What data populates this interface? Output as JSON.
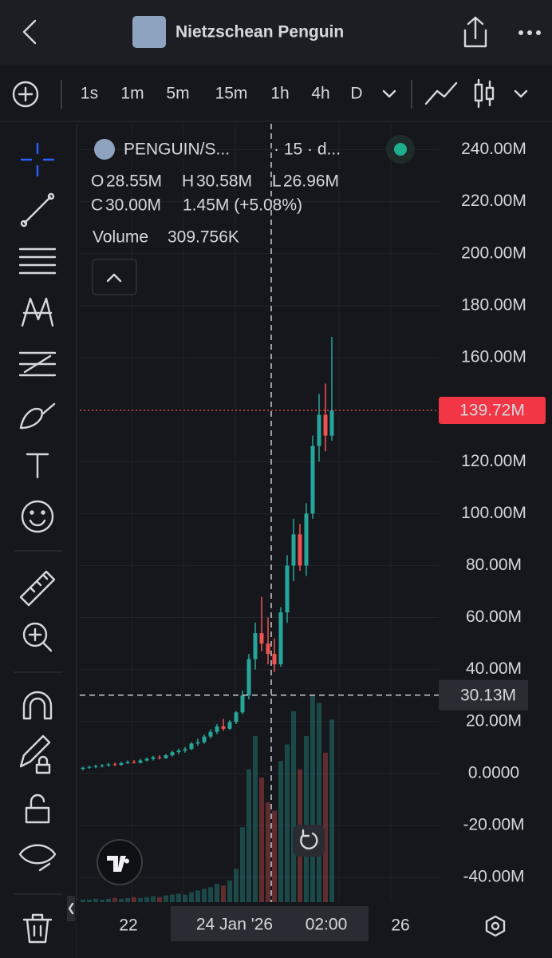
{
  "header": {
    "title": "Nietzschean Penguin"
  },
  "toolbar": {
    "timeframes": [
      "1s",
      "1m",
      "5m",
      "15m",
      "1h",
      "4h",
      "D"
    ],
    "active": "15m"
  },
  "legend": {
    "symbol": "PENGUIN/S...",
    "interval": "· 15 · d...",
    "o_key": "O",
    "o": "28.55M",
    "h_key": "H",
    "h": "30.58M",
    "l_key": "L",
    "l": "26.96M",
    "c_key": "C",
    "c": "30.00M",
    "change": "1.45M (+5.08%)",
    "volume_key": "Volume",
    "volume": "309.756K"
  },
  "chart_data": {
    "type": "candlestick",
    "up_color": "#26a69a",
    "down_color": "#ef5350",
    "ylim": [
      -49.5,
      250
    ],
    "yticks": [
      {
        "value": 240,
        "label": "240.00M"
      },
      {
        "value": 220,
        "label": "220.00M"
      },
      {
        "value": 200,
        "label": "200.00M"
      },
      {
        "value": 180,
        "label": "180.00M"
      },
      {
        "value": 160,
        "label": "160.00M"
      },
      {
        "value": 120,
        "label": "120.00M"
      },
      {
        "value": 100,
        "label": "100.00M"
      },
      {
        "value": 80,
        "label": "80.00M"
      },
      {
        "value": 60,
        "label": "60.00M"
      },
      {
        "value": 40,
        "label": "40.00M"
      },
      {
        "value": 20,
        "label": "20.00M"
      },
      {
        "value": 0,
        "label": "0.0000"
      },
      {
        "value": -20,
        "label": "-20.00M"
      },
      {
        "value": -40,
        "label": "-40.00M"
      }
    ],
    "grid": true,
    "last_price": {
      "value": 139.72,
      "label": "139.72M"
    },
    "crosshair": {
      "value": 30.13,
      "label": "30.13M",
      "date": "24 Jan '26",
      "time": "02:00"
    },
    "x_labels": [
      "22",
      "26"
    ],
    "candles": [
      {
        "open": 1.8,
        "high": 2.6,
        "low": 1.2,
        "close": 2.2
      },
      {
        "open": 2.2,
        "high": 3.0,
        "low": 1.8,
        "close": 2.5
      },
      {
        "open": 2.5,
        "high": 3.4,
        "low": 2.0,
        "close": 2.8
      },
      {
        "open": 2.8,
        "high": 3.6,
        "low": 2.3,
        "close": 3.1
      },
      {
        "open": 3.1,
        "high": 4.0,
        "low": 2.6,
        "close": 3.5
      },
      {
        "open": 3.5,
        "high": 4.2,
        "low": 2.9,
        "close": 3.3
      },
      {
        "open": 3.3,
        "high": 4.5,
        "low": 3.0,
        "close": 4.0
      },
      {
        "open": 4.0,
        "high": 5.0,
        "low": 3.6,
        "close": 4.4
      },
      {
        "open": 4.4,
        "high": 5.2,
        "low": 3.8,
        "close": 4.1
      },
      {
        "open": 4.1,
        "high": 5.6,
        "low": 3.9,
        "close": 5.0
      },
      {
        "open": 5.0,
        "high": 6.2,
        "low": 4.6,
        "close": 5.6
      },
      {
        "open": 5.6,
        "high": 6.8,
        "low": 5.0,
        "close": 6.2
      },
      {
        "open": 6.2,
        "high": 7.0,
        "low": 5.4,
        "close": 5.9
      },
      {
        "open": 5.9,
        "high": 7.5,
        "low": 5.6,
        "close": 7.0
      },
      {
        "open": 7.0,
        "high": 8.8,
        "low": 6.5,
        "close": 8.2
      },
      {
        "open": 8.2,
        "high": 9.6,
        "low": 7.4,
        "close": 8.8
      },
      {
        "open": 8.8,
        "high": 10.2,
        "low": 8.0,
        "close": 9.4
      },
      {
        "open": 9.4,
        "high": 12.0,
        "low": 9.0,
        "close": 11.5
      },
      {
        "open": 11.5,
        "high": 13.4,
        "low": 10.6,
        "close": 12.0
      },
      {
        "open": 12.0,
        "high": 15.0,
        "low": 11.4,
        "close": 14.2
      },
      {
        "open": 14.2,
        "high": 17.0,
        "low": 13.5,
        "close": 16.0
      },
      {
        "open": 16.0,
        "high": 19.0,
        "low": 15.2,
        "close": 18.1
      },
      {
        "open": 18.1,
        "high": 21.0,
        "low": 16.4,
        "close": 17.2
      },
      {
        "open": 17.2,
        "high": 20.5,
        "low": 16.8,
        "close": 19.8
      },
      {
        "open": 19.8,
        "high": 24.0,
        "low": 19.0,
        "close": 23.5
      },
      {
        "open": 23.5,
        "high": 32.0,
        "low": 22.8,
        "close": 30.0
      },
      {
        "open": 30.0,
        "high": 46.0,
        "low": 28.5,
        "close": 44.0
      },
      {
        "open": 44.0,
        "high": 58.0,
        "low": 40.0,
        "close": 54.0
      },
      {
        "open": 54.0,
        "high": 68.0,
        "low": 47.0,
        "close": 50.0
      },
      {
        "open": 50.0,
        "high": 60.0,
        "low": 42.0,
        "close": 46.0
      },
      {
        "open": 46.0,
        "high": 52.0,
        "low": 39.0,
        "close": 42.0
      },
      {
        "open": 42.0,
        "high": 64.0,
        "low": 41.0,
        "close": 62.0
      },
      {
        "open": 62.0,
        "high": 84.0,
        "low": 58.0,
        "close": 80.0
      },
      {
        "open": 80.0,
        "high": 98.0,
        "low": 74.0,
        "close": 92.0
      },
      {
        "open": 92.0,
        "high": 96.0,
        "low": 78.0,
        "close": 80.0
      },
      {
        "open": 80.0,
        "high": 104.0,
        "low": 76.0,
        "close": 100.0
      },
      {
        "open": 100.0,
        "high": 130.0,
        "low": 98.0,
        "close": 126.0
      },
      {
        "open": 126.0,
        "high": 146.0,
        "low": 120.0,
        "close": 138.0
      },
      {
        "open": 138.0,
        "high": 150.0,
        "low": 124.0,
        "close": 130.0
      },
      {
        "open": 130.0,
        "high": 168.0,
        "low": 128.0,
        "close": 139.72
      }
    ],
    "volume": [
      3,
      3,
      4,
      3,
      4,
      5,
      4,
      5,
      6,
      5,
      6,
      7,
      6,
      8,
      9,
      10,
      9,
      12,
      14,
      16,
      18,
      22,
      20,
      26,
      40,
      90,
      160,
      200,
      150,
      120,
      110,
      170,
      190,
      230,
      160,
      200,
      250,
      240,
      180,
      220
    ]
  }
}
